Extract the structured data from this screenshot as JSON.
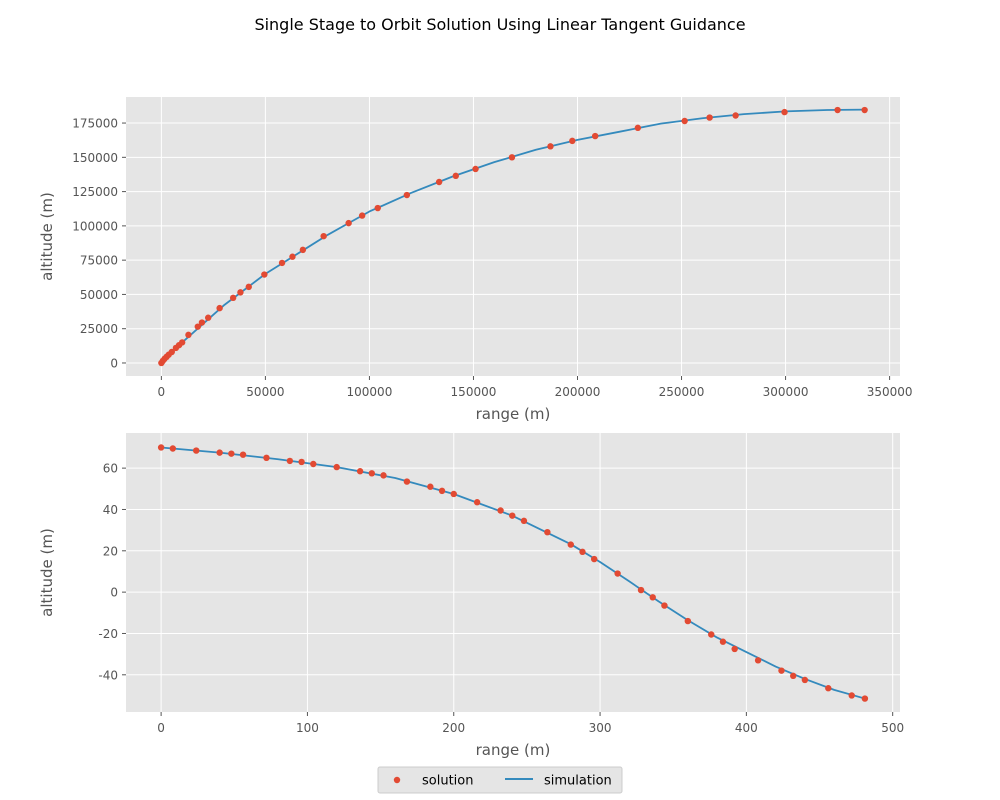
{
  "figure": {
    "suptitle": "Single Stage to Orbit Solution Using Linear Tangent Guidance"
  },
  "legend": {
    "placement": "bottom-center",
    "entries": [
      {
        "label": "solution",
        "marker": "dot"
      },
      {
        "label": "simulation",
        "marker": "line"
      }
    ]
  },
  "colors": {
    "axes_bg": "#e5e5e5",
    "grid": "#ffffff",
    "solution": "#e24a33",
    "simulation": "#348abd"
  },
  "chart_data": [
    {
      "type": "line",
      "title": "",
      "xlabel": "range (m)",
      "ylabel": "altitude (m)",
      "xlim": [
        -17000,
        355000
      ],
      "ylim": [
        -9500,
        194000
      ],
      "xticks": [
        0,
        50000,
        100000,
        150000,
        200000,
        250000,
        300000,
        350000
      ],
      "yticks": [
        0,
        25000,
        50000,
        75000,
        100000,
        125000,
        150000,
        175000
      ],
      "grid": true,
      "series": [
        {
          "name": "solution",
          "style": "markers",
          "x": [
            0,
            700,
            1500,
            2500,
            3500,
            5000,
            7000,
            8500,
            10000,
            13000,
            17500,
            19500,
            22500,
            28000,
            34500,
            38000,
            42000,
            49500,
            58000,
            63000,
            68000,
            78000,
            90000,
            96500,
            104000,
            118000,
            133500,
            141500,
            151000,
            168500,
            187000,
            197500,
            208500,
            229000,
            251500,
            263500,
            276000,
            299500,
            325000,
            338000
          ],
          "y": [
            0,
            1500,
            3000,
            4500,
            6000,
            8000,
            11000,
            13000,
            15000,
            20500,
            26500,
            29500,
            33000,
            40000,
            47500,
            51500,
            55500,
            64500,
            73000,
            77500,
            82500,
            92500,
            102000,
            107500,
            113000,
            122500,
            132000,
            136500,
            141500,
            150000,
            158000,
            162000,
            165500,
            171500,
            176500,
            179000,
            180500,
            183000,
            184500,
            184500
          ]
        },
        {
          "name": "simulation",
          "style": "line",
          "x": [
            0,
            2500,
            5000,
            10000,
            20000,
            30000,
            40000,
            50000,
            60000,
            70000,
            80000,
            90000,
            100000,
            120000,
            140000,
            160000,
            180000,
            200000,
            220000,
            240000,
            260000,
            280000,
            300000,
            320000,
            338000
          ],
          "y": [
            0,
            4500,
            8000,
            15000,
            28500,
            42000,
            53500,
            65000,
            74500,
            84000,
            93500,
            102000,
            110500,
            124000,
            136000,
            146500,
            155500,
            162700,
            168600,
            174600,
            178500,
            181500,
            183500,
            184500,
            184800
          ]
        }
      ]
    },
    {
      "type": "line",
      "title": "",
      "xlabel": "range (m)",
      "ylabel": "altitude (m)",
      "xlim": [
        -24,
        505
      ],
      "ylim": [
        -58,
        77
      ],
      "xticks": [
        0,
        100,
        200,
        300,
        400,
        500
      ],
      "yticks": [
        -40,
        -20,
        0,
        20,
        40,
        60
      ],
      "grid": true,
      "series": [
        {
          "name": "solution",
          "style": "markers",
          "x": [
            0,
            8,
            24,
            40,
            48,
            56,
            72,
            88,
            96,
            104,
            120,
            136,
            144,
            152,
            168,
            184,
            192,
            200,
            216,
            232,
            240,
            248,
            264,
            280,
            288,
            296,
            312,
            328,
            336,
            344,
            360,
            376,
            384,
            392,
            408,
            424,
            432,
            440,
            456,
            472,
            481
          ],
          "y": [
            70,
            69.5,
            68.5,
            67.5,
            67,
            66.5,
            65,
            63.5,
            63,
            62,
            60.5,
            58.5,
            57.5,
            56.5,
            53.5,
            51,
            49,
            47.5,
            43.5,
            39.5,
            37,
            34.5,
            29,
            23,
            19.5,
            16,
            9,
            1,
            -2.5,
            -6.5,
            -14,
            -20.5,
            -24,
            -27.5,
            -33,
            -38,
            -40.5,
            -42.5,
            -46.5,
            -50,
            -51.5
          ]
        },
        {
          "name": "simulation",
          "style": "line",
          "x": [
            0,
            40,
            80,
            120,
            160,
            200,
            240,
            280,
            300,
            320,
            340,
            360,
            380,
            400,
            420,
            440,
            460,
            481
          ],
          "y": [
            70,
            67.5,
            64.3,
            60.5,
            55.2,
            47.5,
            37,
            23.2,
            14.6,
            5.2,
            -4.5,
            -13.6,
            -22,
            -29,
            -36,
            -42,
            -47.3,
            -51.5
          ]
        }
      ]
    }
  ]
}
